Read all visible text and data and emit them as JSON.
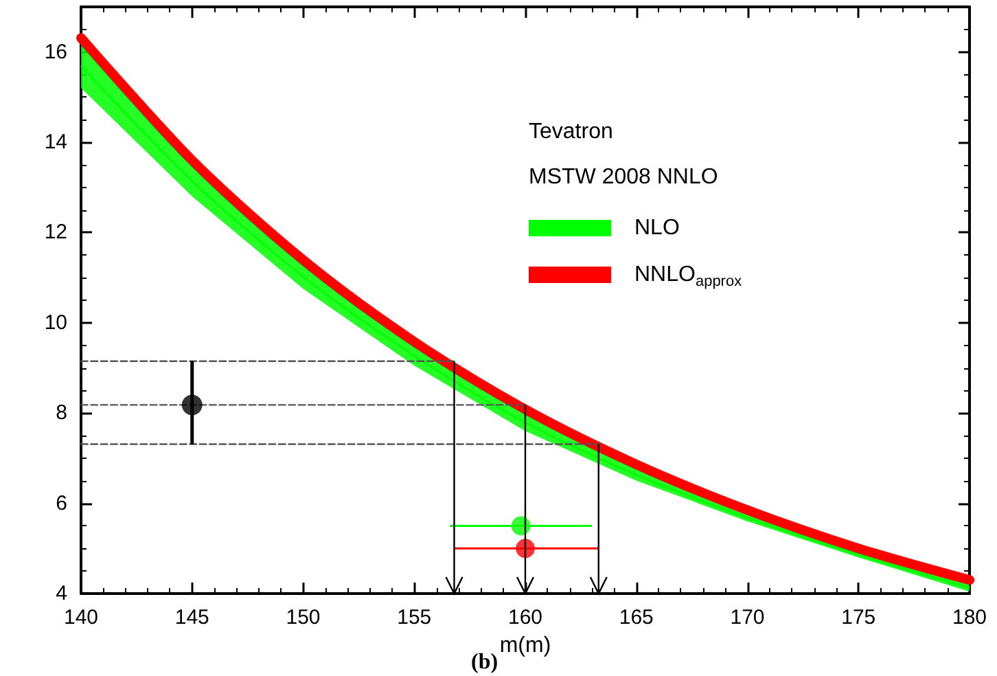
{
  "chart_data": {
    "type": "line",
    "xlabel": "m(m)",
    "annotations": [
      "Tevatron",
      "MSTW 2008 NNLO",
      "(b)"
    ],
    "xlim": [
      140,
      180
    ],
    "xticks": [
      140,
      145,
      150,
      155,
      160,
      165,
      170,
      175,
      180
    ],
    "ylim": [
      4,
      17
    ],
    "yticks": [
      4,
      6,
      8,
      10,
      12,
      14,
      16
    ],
    "legend": "top right",
    "series": [
      {
        "name": "NLO",
        "color": "#00ff00",
        "x": [
          140,
          145,
          150,
          155,
          160,
          165,
          170,
          175,
          180
        ],
        "values": [
          15.69,
          13.14,
          11.02,
          9.27,
          7.79,
          6.63,
          5.68,
          4.86,
          4.13
        ],
        "lower": [
          15.2,
          12.8,
          10.75,
          9.05,
          7.6,
          6.5,
          5.6,
          4.8,
          4.04
        ],
        "upper": [
          16.18,
          13.48,
          11.28,
          9.48,
          7.98,
          6.76,
          5.76,
          4.92,
          4.22
        ]
      },
      {
        "name": "NNLO$_{approx}$",
        "color": "#ff0000",
        "x": [
          140,
          145,
          150,
          155,
          160,
          165,
          170,
          175,
          180
        ],
        "values": [
          16.31,
          13.6,
          11.39,
          9.58,
          8.08,
          6.86,
          5.85,
          5.0,
          4.3
        ]
      },
      {
        "type": "line",
        "color": "#555555",
        "line_style": "dashed",
        "x": [
          140,
          156.8
        ],
        "values": [
          9.15,
          9.15
        ]
      },
      {
        "type": "line",
        "color": "#555555",
        "line_style": "dashed",
        "x": [
          140,
          160
        ],
        "values": [
          8.18,
          8.18
        ]
      },
      {
        "type": "line",
        "color": "#555555",
        "line_style": "dashed",
        "x": [
          140,
          163.3
        ],
        "values": [
          7.31,
          7.31
        ]
      },
      {
        "type": "scatter",
        "color": "#000000",
        "marker": "circle",
        "x": [
          145
        ],
        "values": [
          8.18
        ],
        "errors": [
          [
            7.31,
            9.15
          ]
        ]
      },
      {
        "type": "scatter",
        "color": "#00ff00",
        "marker": "circle",
        "x": [
          159.8
        ],
        "values": [
          5.5
        ],
        "xerrors": [
          [
            156.6,
            163.0
          ]
        ]
      },
      {
        "type": "scatter",
        "color": "#ff0000",
        "marker": "circle",
        "x": [
          160
        ],
        "values": [
          5.0
        ],
        "xerrors": [
          [
            156.8,
            163.3
          ]
        ]
      }
    ]
  }
}
